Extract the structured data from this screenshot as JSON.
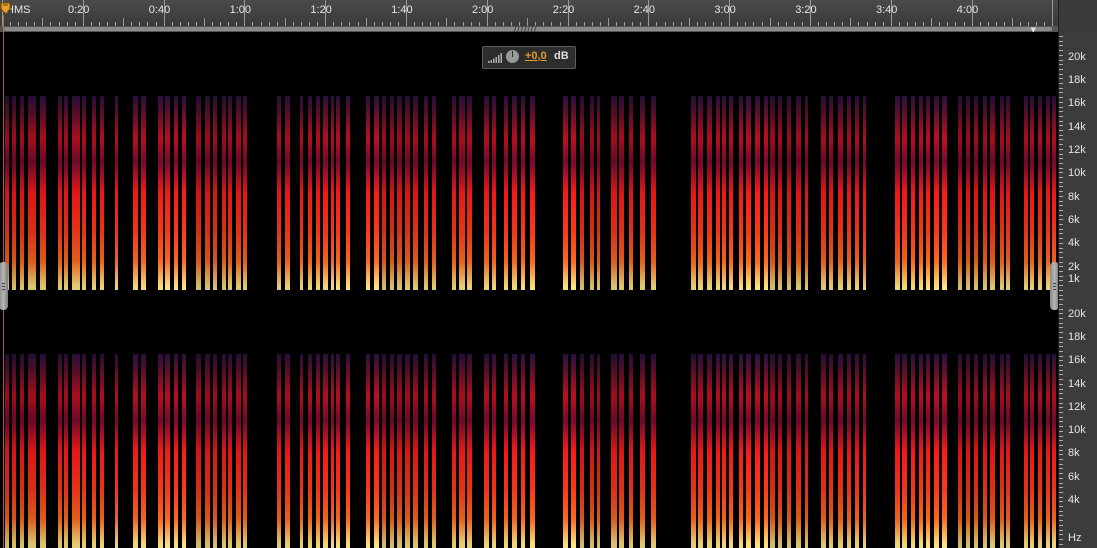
{
  "ruler": {
    "unit_label": "HMS",
    "time_labels": [
      "0:20",
      "0:40",
      "1:00",
      "1:20",
      "1:40",
      "2:00",
      "2:20",
      "2:40",
      "3:00",
      "3:20",
      "3:40",
      "4:00"
    ]
  },
  "hud": {
    "gain_value": "+0,0",
    "gain_unit": "dB"
  },
  "frequency_scale": {
    "channel_1_labels": [
      "20k",
      "18k",
      "16k",
      "14k",
      "12k",
      "10k",
      "8k",
      "6k",
      "4k",
      "2k",
      "1k"
    ],
    "channel_2_labels": [
      "20k",
      "18k",
      "16k",
      "14k",
      "12k",
      "10k",
      "8k",
      "6k",
      "4k"
    ],
    "unit_label": "Hz"
  },
  "colors": {
    "background": "#000000",
    "panel": "#3c3c3c",
    "accent": "#e09a2a",
    "spectrum_hot": "#ffe680",
    "spectrum_mid": "#ff1a1a",
    "spectrum_low": "#2a1040"
  },
  "icons": [
    "playhead-marker-icon",
    "level-bars-icon",
    "gain-knob-icon",
    "scroll-grip-icon",
    "scroll-arrow-icon",
    "resize-handle-icon"
  ]
}
